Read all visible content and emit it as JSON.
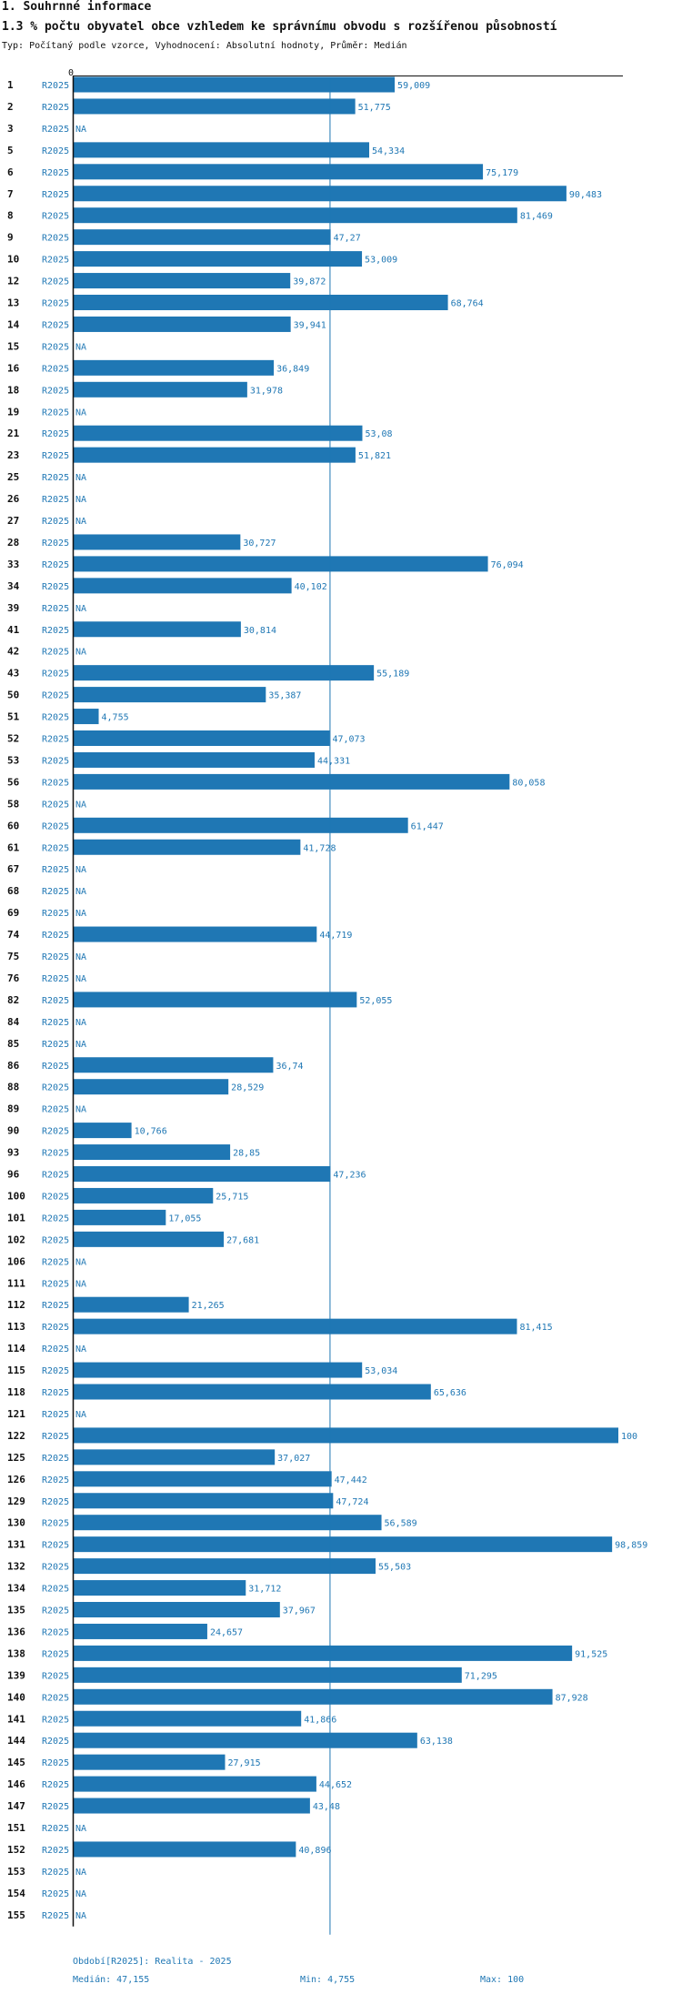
{
  "section_title": "1. Souhrnné informace",
  "chart_data": {
    "type": "bar",
    "orientation": "horizontal",
    "title": "1.3 % počtu obyvatel obce vzhledem ke správnímu obvodu s rozšířenou působností",
    "subtitle": "Typ: Počítaný podle vzorce, Vyhodnocení: Absolutní hodnoty, Průměr: Medián",
    "axis_zero_label": "0",
    "series_name": "R2025",
    "na_label": "NA",
    "xlim": [
      0,
      100
    ],
    "median": 47.155,
    "color": "#1f77b4",
    "categories": [
      "1",
      "2",
      "3",
      "5",
      "6",
      "7",
      "8",
      "9",
      "10",
      "12",
      "13",
      "14",
      "15",
      "16",
      "18",
      "19",
      "21",
      "23",
      "25",
      "26",
      "27",
      "28",
      "33",
      "34",
      "39",
      "41",
      "42",
      "43",
      "50",
      "51",
      "52",
      "53",
      "56",
      "58",
      "60",
      "61",
      "67",
      "68",
      "69",
      "74",
      "75",
      "76",
      "82",
      "84",
      "85",
      "86",
      "88",
      "89",
      "90",
      "93",
      "96",
      "100",
      "101",
      "102",
      "106",
      "111",
      "112",
      "113",
      "114",
      "115",
      "118",
      "121",
      "122",
      "125",
      "126",
      "129",
      "130",
      "131",
      "132",
      "134",
      "135",
      "136",
      "138",
      "139",
      "140",
      "141",
      "144",
      "145",
      "146",
      "147",
      "151",
      "152",
      "153",
      "154",
      "155"
    ],
    "values": [
      59.009,
      51.775,
      null,
      54.334,
      75.179,
      90.483,
      81.469,
      47.27,
      53.009,
      39.872,
      68.764,
      39.941,
      null,
      36.849,
      31.978,
      null,
      53.08,
      51.821,
      null,
      null,
      null,
      30.727,
      76.094,
      40.102,
      null,
      30.814,
      null,
      55.189,
      35.387,
      4.755,
      47.073,
      44.331,
      80.058,
      null,
      61.447,
      41.728,
      null,
      null,
      null,
      44.719,
      null,
      null,
      52.055,
      null,
      null,
      36.74,
      28.529,
      null,
      10.766,
      28.85,
      47.236,
      25.715,
      17.055,
      27.681,
      null,
      null,
      21.265,
      81.415,
      null,
      53.034,
      65.636,
      null,
      100,
      37.027,
      47.442,
      47.724,
      56.589,
      98.859,
      55.503,
      31.712,
      37.967,
      24.657,
      91.525,
      71.295,
      87.928,
      41.866,
      63.138,
      27.915,
      44.652,
      43.48,
      null,
      40.896,
      null,
      null,
      null
    ],
    "labels": [
      "59,009",
      "51,775",
      "NA",
      "54,334",
      "75,179",
      "90,483",
      "81,469",
      "47,27",
      "53,009",
      "39,872",
      "68,764",
      "39,941",
      "NA",
      "36,849",
      "31,978",
      "NA",
      "53,08",
      "51,821",
      "NA",
      "NA",
      "NA",
      "30,727",
      "76,094",
      "40,102",
      "NA",
      "30,814",
      "NA",
      "55,189",
      "35,387",
      "4,755",
      "47,073",
      "44,331",
      "80,058",
      "NA",
      "61,447",
      "41,728",
      "NA",
      "NA",
      "NA",
      "44,719",
      "NA",
      "NA",
      "52,055",
      "NA",
      "NA",
      "36,74",
      "28,529",
      "NA",
      "10,766",
      "28,85",
      "47,236",
      "25,715",
      "17,055",
      "27,681",
      "NA",
      "NA",
      "21,265",
      "81,415",
      "NA",
      "53,034",
      "65,636",
      "NA",
      "100",
      "37,027",
      "47,442",
      "47,724",
      "56,589",
      "98,859",
      "55,503",
      "31,712",
      "37,967",
      "24,657",
      "91,525",
      "71,295",
      "87,928",
      "41,866",
      "63,138",
      "27,915",
      "44,652",
      "43,48",
      "NA",
      "40,896",
      "NA",
      "NA",
      "NA"
    ]
  },
  "footer": {
    "period": "Období[R2025]: Realita - 2025",
    "median": "Medián: 47,155",
    "min": "Min: 4,755",
    "max": "Max: 100"
  }
}
